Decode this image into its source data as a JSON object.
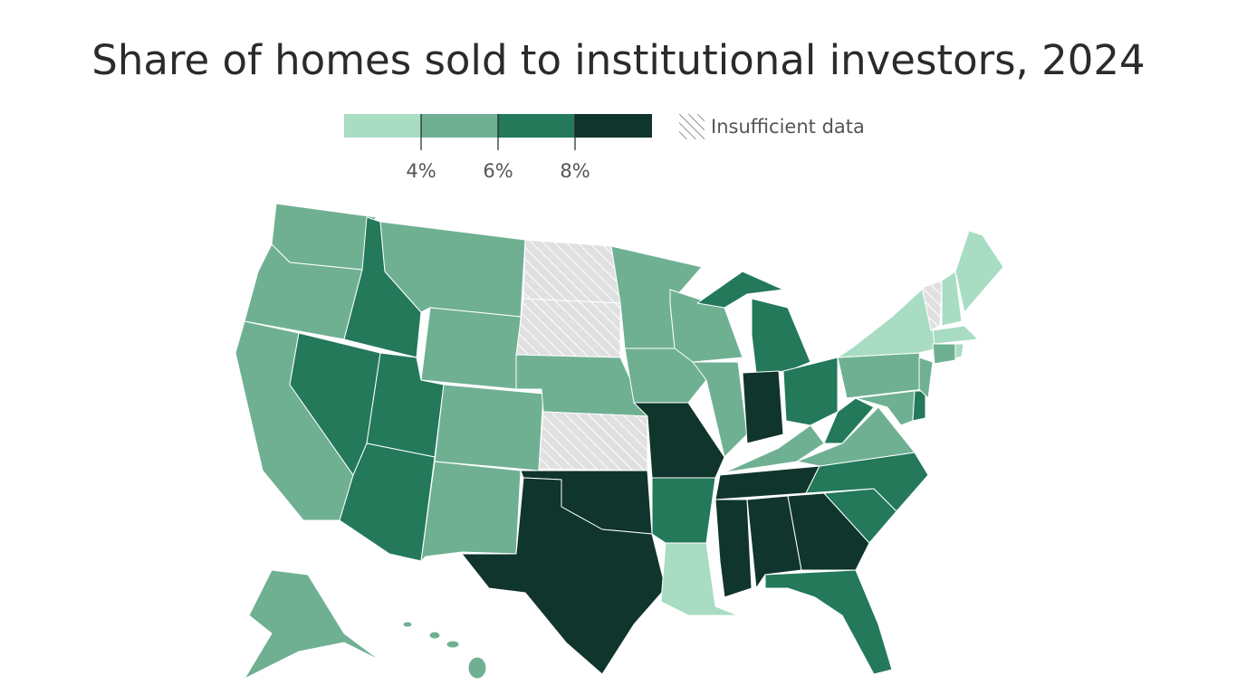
{
  "title": "Share of homes sold to institutional investors, 2024",
  "legend": {
    "colors": [
      "#a8dcc3",
      "#6fb093",
      "#23795a",
      "#0f352c"
    ],
    "ticks": [
      {
        "value": 4,
        "label": "4%"
      },
      {
        "value": 6,
        "label": "6%"
      },
      {
        "value": 8,
        "label": "8%"
      }
    ],
    "no_data_label": "Insufficient data",
    "no_data_color": "#e0e0e0"
  }
}
